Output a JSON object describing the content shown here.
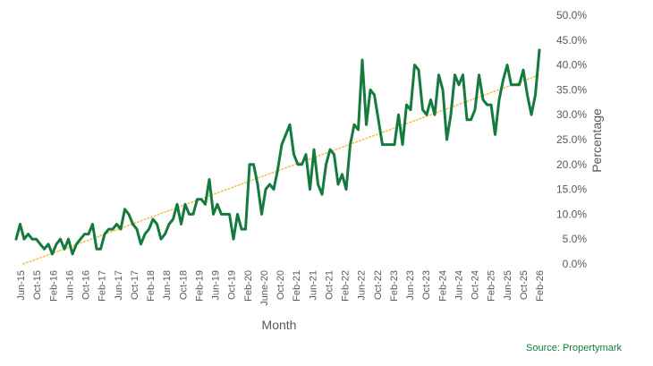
{
  "chart_data": {
    "type": "line",
    "title": "",
    "xlabel": "Month",
    "ylabel": "Percentage",
    "ylim": [
      0,
      50
    ],
    "y_ticks": [
      "0.0%",
      "5.0%",
      "10.0%",
      "15.0%",
      "20.0%",
      "25.0%",
      "30.0%",
      "35.0%",
      "40.0%",
      "45.0%",
      "50.0%"
    ],
    "x_ticks": [
      "Jun-15",
      "Oct-15",
      "Feb-16",
      "Jun-16",
      "Oct-16",
      "Feb-17",
      "Jun-17",
      "Oct-17",
      "Feb-18",
      "Jun-18",
      "Oct-18",
      "Feb-19",
      "Jun-19",
      "Oct-19",
      "Feb-20",
      "June-20",
      "Oct-20",
      "Feb-21",
      "Jun-21",
      "Oct-21",
      "Feb-22",
      "Jun-22",
      "Oct-22",
      "Feb-23",
      "Jun-23",
      "Oct-23",
      "Feb-24",
      "Jun-24",
      "Oct-24",
      "Feb-25",
      "Jun-25",
      "Oct-25",
      "Feb-26"
    ],
    "y_axis_position": "right",
    "grid": false,
    "legend": "none",
    "series": [
      {
        "color": "#157a3e",
        "values": [
          5.0,
          8.0,
          5.0,
          6.0,
          5.0,
          5.0,
          4.0,
          3.0,
          4.0,
          2.0,
          4.0,
          5.0,
          3.0,
          5.0,
          2.0,
          4.0,
          5.0,
          6.0,
          6.0,
          8.0,
          3.0,
          3.0,
          6.0,
          7.0,
          7.0,
          8.0,
          7.0,
          11.0,
          10.0,
          8.0,
          7.0,
          4.0,
          6.0,
          7.0,
          9.0,
          8.0,
          5.0,
          6.0,
          8.0,
          9.0,
          12.0,
          8.0,
          12.0,
          10.0,
          10.0,
          13.0,
          13.0,
          12.0,
          17.0,
          10.0,
          12.0,
          10.0,
          10.0,
          10.0,
          5.0,
          10.0,
          7.0,
          7.0,
          20.0,
          20.0,
          16.0,
          10.0,
          15.0,
          16.0,
          15.0,
          19.0,
          24.0,
          26.0,
          28.0,
          22.0,
          20.0,
          20.0,
          22.0,
          15.0,
          23.0,
          16.0,
          14.0,
          20.0,
          23.0,
          22.0,
          16.0,
          18.0,
          15.0,
          24.0,
          28.0,
          27.0,
          41.0,
          28.0,
          35.0,
          34.0,
          29.0,
          24.0,
          24.0,
          24.0,
          24.0,
          30.0,
          24.0,
          32.0,
          31.0,
          40.0,
          39.0,
          31.0,
          30.0,
          33.0,
          30.0,
          38.0,
          35.0,
          25.0,
          30.0,
          38.0,
          36.0,
          38.0,
          29.0,
          29.0,
          31.0,
          38.0,
          33.0,
          32.0,
          32.0,
          26.0,
          33.0,
          37.0,
          40.0,
          36.0,
          36.0,
          36.0,
          39.0,
          34.0,
          30.0,
          34.0,
          43.0
        ]
      },
      {
        "style": "dotted trend line",
        "color": "#f2c14e",
        "values": [
          0.0,
          38.0
        ]
      }
    ]
  },
  "source": "Source: Propertymark"
}
